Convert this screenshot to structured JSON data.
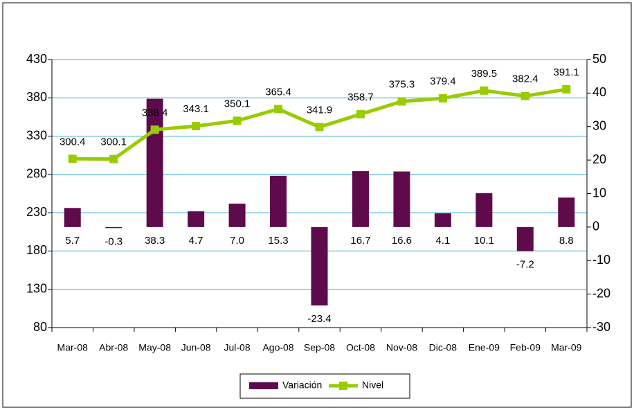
{
  "chart_data": {
    "type": "bar-line",
    "categories": [
      "Mar-08",
      "Abr-08",
      "May-08",
      "Jun-08",
      "Jul-08",
      "Ago-08",
      "Sep-08",
      "Oct-08",
      "Nov-08",
      "Dic-08",
      "Ene-09",
      "Feb-09",
      "Mar-09"
    ],
    "series": [
      {
        "name": "Variación",
        "type": "bar",
        "axis": "y2",
        "color": "#5e0a4c",
        "values": [
          5.7,
          -0.3,
          38.3,
          4.7,
          7.0,
          15.3,
          -23.4,
          16.7,
          16.6,
          4.1,
          10.1,
          -7.2,
          8.8
        ],
        "value_labels": [
          "5.7",
          "-0.3",
          "38.3",
          "4.7",
          "7.0",
          "15.3",
          "-23.4",
          "16.7",
          "16.6",
          "4.1",
          "10.1",
          "-7.2",
          "8.8"
        ]
      },
      {
        "name": "Nivel",
        "type": "line",
        "axis": "y",
        "color": "#99cc00",
        "values": [
          300.4,
          300.1,
          338.4,
          343.1,
          350.1,
          365.4,
          341.9,
          358.7,
          375.3,
          379.4,
          389.5,
          382.4,
          391.1
        ]
      }
    ],
    "ylim": [
      80,
      430
    ],
    "yticks": [
      80,
      130,
      180,
      230,
      280,
      330,
      380,
      430
    ],
    "y2lim": [
      -30,
      50
    ],
    "y2ticks": [
      -30,
      -20,
      -10,
      0,
      10,
      20,
      30,
      40,
      50
    ],
    "grid": true,
    "legend": "bottom"
  }
}
